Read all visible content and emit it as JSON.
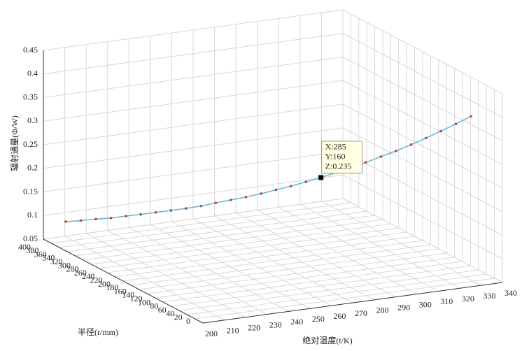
{
  "chart_data": {
    "type": "line3d",
    "xlabel": "绝对温度(t/K)",
    "ylabel": "半径(r/mm)",
    "zlabel": "辐射通量(Φ/W)",
    "xlim": [
      200,
      340
    ],
    "ylim": [
      0,
      400
    ],
    "zlim": [
      0.05,
      0.45
    ],
    "xticks": [
      200,
      210,
      220,
      230,
      240,
      250,
      260,
      270,
      280,
      290,
      300,
      310,
      320,
      330,
      340
    ],
    "yticks": [
      0,
      20,
      40,
      60,
      80,
      100,
      120,
      140,
      160,
      180,
      200,
      220,
      240,
      260,
      280,
      300,
      320,
      340,
      360,
      380,
      400
    ],
    "zticks": [
      0.05,
      0.1,
      0.15,
      0.2,
      0.25,
      0.3,
      0.35,
      0.4,
      0.45
    ],
    "grid": true,
    "series": [
      {
        "color": "#5cb8d8",
        "marker_color": "#c8403a",
        "x": [
          200,
          205,
          210,
          215,
          220,
          225,
          230,
          235,
          240,
          245,
          250,
          255,
          260,
          265,
          270,
          275,
          280,
          285,
          290,
          295,
          300,
          305,
          310,
          315,
          320,
          325,
          330,
          335
        ],
        "y": [
          344,
          333,
          322,
          311,
          300,
          290,
          279,
          268,
          257,
          246,
          236,
          225,
          214,
          203,
          192,
          182,
          171,
          160,
          149,
          138,
          128,
          117,
          106,
          95,
          84,
          74,
          63,
          52
        ],
        "z": [
          0.112,
          0.116,
          0.121,
          0.125,
          0.131,
          0.136,
          0.142,
          0.148,
          0.154,
          0.161,
          0.169,
          0.177,
          0.185,
          0.194,
          0.204,
          0.213,
          0.224,
          0.235,
          0.247,
          0.259,
          0.272,
          0.286,
          0.3,
          0.315,
          0.331,
          0.347,
          0.364,
          0.382
        ]
      }
    ],
    "datatip": {
      "x": 285,
      "y": 160,
      "z": 0.235,
      "labels": [
        "X:285",
        "Y:160",
        "Z:0.235"
      ]
    }
  }
}
